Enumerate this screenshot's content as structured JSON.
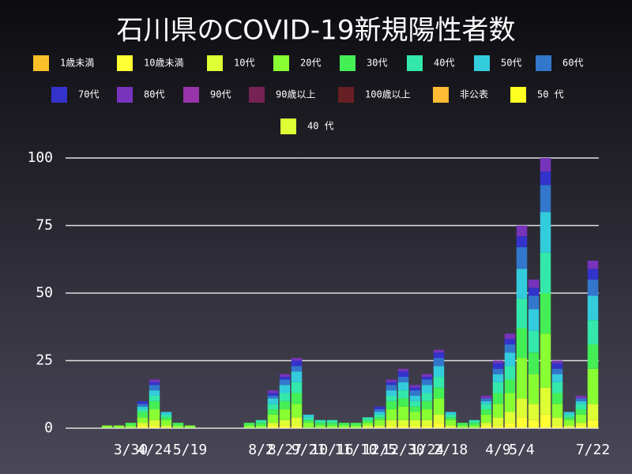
{
  "chart_data": {
    "type": "bar",
    "stacked": true,
    "title": "石川県のCOVID-19新規陽性者数",
    "categories": [
      null,
      null,
      null,
      null,
      null,
      "3/30",
      null,
      "4/24",
      null,
      null,
      "5/19",
      null,
      null,
      null,
      null,
      null,
      "8/2",
      null,
      "8/27",
      null,
      "9/21",
      null,
      "10/16",
      null,
      "11/10",
      null,
      "12/5",
      null,
      "12/30",
      null,
      "1/24",
      null,
      "2/18",
      null,
      null,
      null,
      "4/9",
      null,
      "5/4",
      null,
      null,
      null,
      null,
      null,
      "7/22"
    ],
    "series": [
      {
        "name": "1歳未満",
        "color": "#fbbf2a",
        "values": [
          0,
          0,
          0,
          0,
          0,
          0,
          0,
          0,
          0,
          0,
          0,
          0,
          0,
          0,
          0,
          0,
          0,
          0,
          0,
          0,
          0,
          0,
          0,
          0,
          0,
          0,
          0,
          0,
          0,
          0,
          0,
          0,
          0,
          0,
          0,
          0,
          0,
          0,
          0,
          0,
          0,
          0,
          0,
          0,
          0
        ]
      },
      {
        "name": "10歳未満",
        "color": "#ffff33",
        "values": [
          0,
          0,
          0,
          0,
          0,
          0,
          1,
          1,
          0,
          0,
          0,
          0,
          0,
          0,
          0,
          0,
          0,
          1,
          1,
          1,
          0,
          0,
          0,
          0,
          0,
          0,
          0,
          1,
          1,
          1,
          1,
          2,
          0,
          0,
          0,
          1,
          1,
          2,
          4,
          3,
          5,
          1,
          0,
          1,
          3
        ]
      },
      {
        "name": "10代",
        "color": "#ddff33",
        "values": [
          0,
          0,
          0,
          0,
          0,
          0,
          1,
          2,
          1,
          0,
          0,
          0,
          0,
          0,
          0,
          0,
          0,
          1,
          2,
          3,
          0,
          0,
          0,
          0,
          0,
          1,
          1,
          2,
          2,
          2,
          2,
          3,
          1,
          0,
          0,
          1,
          3,
          4,
          7,
          6,
          10,
          3,
          1,
          1,
          6
        ]
      },
      {
        "name": "20代",
        "color": "#88ff33",
        "values": [
          0,
          0,
          0,
          1,
          1,
          1,
          2,
          4,
          2,
          1,
          1,
          0,
          0,
          0,
          0,
          1,
          1,
          3,
          4,
          5,
          2,
          1,
          1,
          1,
          1,
          1,
          2,
          4,
          5,
          3,
          4,
          6,
          2,
          1,
          1,
          3,
          5,
          7,
          15,
          11,
          20,
          5,
          2,
          3,
          13
        ]
      },
      {
        "name": "30代",
        "color": "#44ee55",
        "values": [
          0,
          0,
          0,
          0,
          0,
          1,
          2,
          3,
          1,
          1,
          0,
          0,
          0,
          0,
          0,
          1,
          1,
          2,
          3,
          4,
          1,
          1,
          1,
          1,
          1,
          1,
          1,
          3,
          3,
          2,
          3,
          4,
          1,
          1,
          1,
          2,
          4,
          5,
          11,
          8,
          15,
          4,
          1,
          2,
          9
        ]
      },
      {
        "name": "40代",
        "color": "#33e8aa",
        "values": [
          0,
          0,
          0,
          0,
          0,
          0,
          1,
          2,
          1,
          0,
          0,
          0,
          0,
          0,
          0,
          0,
          1,
          2,
          3,
          4,
          1,
          1,
          1,
          0,
          0,
          1,
          1,
          2,
          3,
          2,
          3,
          4,
          1,
          0,
          1,
          2,
          4,
          5,
          11,
          8,
          15,
          4,
          1,
          2,
          9
        ]
      },
      {
        "name": "50代",
        "color": "#33ccdd",
        "values": [
          0,
          0,
          0,
          0,
          0,
          0,
          1,
          2,
          1,
          0,
          0,
          0,
          0,
          0,
          0,
          0,
          0,
          2,
          3,
          4,
          1,
          0,
          0,
          0,
          0,
          0,
          1,
          2,
          3,
          2,
          3,
          4,
          1,
          0,
          0,
          1,
          3,
          5,
          11,
          8,
          15,
          3,
          1,
          1,
          9
        ]
      },
      {
        "name": "60代",
        "color": "#3377cc",
        "values": [
          0,
          0,
          0,
          0,
          0,
          0,
          1,
          2,
          0,
          0,
          0,
          0,
          0,
          0,
          0,
          0,
          0,
          1,
          2,
          2,
          0,
          0,
          0,
          0,
          0,
          0,
          1,
          2,
          2,
          2,
          2,
          3,
          0,
          0,
          0,
          1,
          2,
          3,
          8,
          5,
          10,
          2,
          0,
          1,
          6
        ]
      },
      {
        "name": "70代",
        "color": "#3333cc",
        "values": [
          0,
          0,
          0,
          0,
          0,
          0,
          1,
          1,
          0,
          0,
          0,
          0,
          0,
          0,
          0,
          0,
          0,
          1,
          1,
          2,
          0,
          0,
          0,
          0,
          0,
          0,
          1,
          1,
          2,
          1,
          1,
          2,
          0,
          0,
          0,
          0,
          2,
          2,
          4,
          3,
          5,
          2,
          0,
          0,
          4
        ]
      },
      {
        "name": "80代",
        "color": "#7733bb",
        "values": [
          0,
          0,
          0,
          0,
          0,
          0,
          0,
          1,
          0,
          0,
          0,
          0,
          0,
          0,
          0,
          0,
          0,
          1,
          1,
          1,
          0,
          0,
          0,
          0,
          0,
          0,
          0,
          1,
          1,
          1,
          1,
          1,
          0,
          0,
          0,
          1,
          1,
          2,
          4,
          3,
          5,
          1,
          0,
          1,
          3
        ]
      },
      {
        "name": "90代",
        "color": "#9933aa",
        "values": [
          0,
          0,
          0,
          0,
          0,
          0,
          0,
          0,
          0,
          0,
          0,
          0,
          0,
          0,
          0,
          0,
          0,
          0,
          0,
          0,
          0,
          0,
          0,
          0,
          0,
          0,
          0,
          0,
          0,
          0,
          0,
          0,
          0,
          0,
          0,
          0,
          0,
          0,
          0,
          0,
          0,
          0,
          0,
          0,
          0
        ]
      },
      {
        "name": "90歳以上",
        "color": "#772255",
        "values": [
          0,
          0,
          0,
          0,
          0,
          0,
          0,
          0,
          0,
          0,
          0,
          0,
          0,
          0,
          0,
          0,
          0,
          0,
          0,
          0,
          0,
          0,
          0,
          0,
          0,
          0,
          0,
          0,
          0,
          0,
          0,
          0,
          0,
          0,
          0,
          0,
          0,
          0,
          0,
          0,
          0,
          0,
          0,
          0,
          0
        ]
      },
      {
        "name": "100歳以上",
        "color": "#661f22",
        "values": [
          0,
          0,
          0,
          0,
          0,
          0,
          0,
          0,
          0,
          0,
          0,
          0,
          0,
          0,
          0,
          0,
          0,
          0,
          0,
          0,
          0,
          0,
          0,
          0,
          0,
          0,
          0,
          0,
          0,
          0,
          0,
          0,
          0,
          0,
          0,
          0,
          0,
          0,
          0,
          0,
          0,
          0,
          0,
          0,
          0
        ]
      },
      {
        "name": "非公表",
        "color": "#ffbb33",
        "values": [
          0,
          0,
          0,
          0,
          0,
          0,
          0,
          0,
          0,
          0,
          0,
          0,
          0,
          0,
          0,
          0,
          0,
          0,
          0,
          0,
          0,
          0,
          0,
          0,
          0,
          0,
          0,
          0,
          0,
          0,
          0,
          0,
          0,
          0,
          0,
          0,
          0,
          0,
          0,
          0,
          0,
          0,
          0,
          0,
          0
        ]
      },
      {
        "name": "50 代",
        "color": "#ffff22",
        "values": [
          0,
          0,
          0,
          0,
          0,
          0,
          0,
          0,
          0,
          0,
          0,
          0,
          0,
          0,
          0,
          0,
          0,
          0,
          0,
          0,
          0,
          0,
          0,
          0,
          0,
          0,
          0,
          0,
          0,
          0,
          0,
          0,
          0,
          0,
          0,
          0,
          0,
          0,
          0,
          0,
          0,
          0,
          0,
          0,
          0
        ]
      },
      {
        "name": "40 代",
        "color": "#ddff33",
        "values": [
          0,
          0,
          0,
          0,
          0,
          0,
          0,
          0,
          0,
          0,
          0,
          0,
          0,
          0,
          0,
          0,
          0,
          0,
          0,
          0,
          0,
          0,
          0,
          0,
          0,
          0,
          0,
          0,
          0,
          0,
          0,
          0,
          0,
          0,
          0,
          0,
          0,
          0,
          0,
          0,
          0,
          0,
          0,
          0,
          0
        ]
      }
    ],
    "ylim": [
      0,
      100
    ],
    "yticks": [
      0,
      25,
      50,
      75,
      100
    ],
    "grid": true
  }
}
